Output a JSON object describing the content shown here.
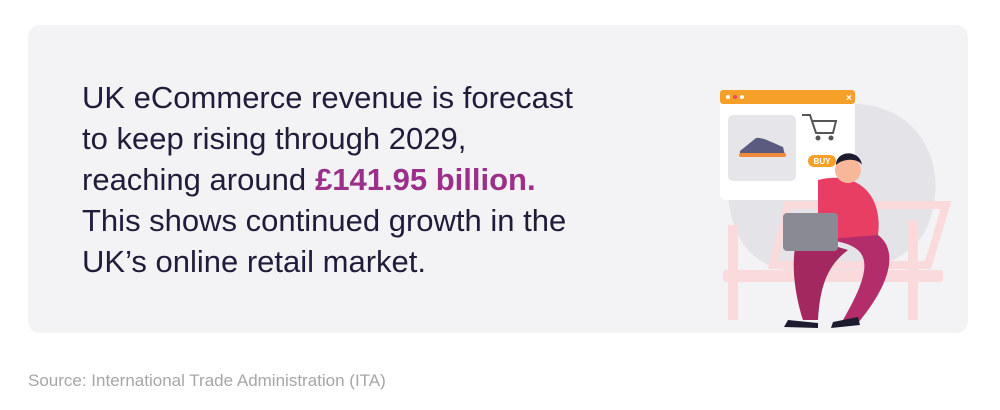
{
  "card": {
    "lines": [
      "UK eCommerce revenue is forecast",
      "to keep rising through 2029,",
      "reaching around",
      "This shows continued growth in the",
      "UK’s online retail market."
    ],
    "highlight": "£141.95 billion."
  },
  "illustration": {
    "button": "BUY"
  },
  "source": "Source: International Trade Administration (ITA)"
}
